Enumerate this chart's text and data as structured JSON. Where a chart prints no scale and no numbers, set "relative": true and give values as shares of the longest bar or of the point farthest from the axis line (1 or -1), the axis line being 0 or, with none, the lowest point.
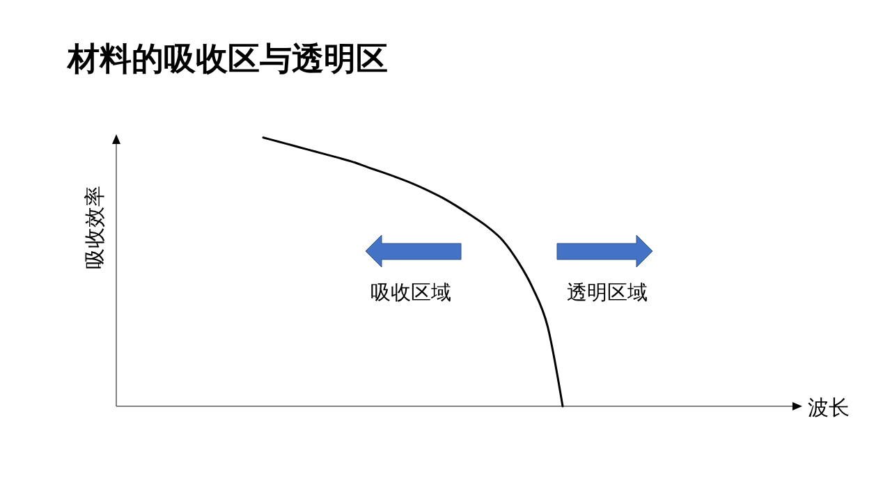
{
  "chart_data": {
    "type": "line",
    "title": "材料的吸收区与透明区",
    "xlabel": "波长",
    "ylabel": "吸收效率",
    "relative": true,
    "color": "#000000",
    "categories": [
      null,
      null,
      null,
      null,
      null,
      null,
      null,
      null,
      null,
      null,
      null,
      null,
      null,
      null,
      null,
      null,
      null,
      null,
      null,
      null,
      null,
      null,
      null,
      null,
      null,
      null,
      null,
      null,
      null,
      null,
      null,
      null,
      null,
      null,
      null,
      null,
      null,
      null,
      null,
      null,
      null,
      null,
      null,
      null,
      null
    ],
    "values": [
      null,
      null,
      null,
      null,
      null,
      null,
      null,
      null,
      null,
      1.0,
      0.985,
      0.97,
      0.955,
      0.94,
      0.925,
      0.909,
      0.889,
      0.87,
      0.85,
      0.828,
      0.803,
      0.775,
      0.742,
      0.706,
      0.667,
      0.617,
      0.54,
      0.44,
      0.296,
      0.0,
      null,
      null,
      null,
      null,
      null,
      null,
      null,
      null,
      null,
      null,
      null,
      null,
      null,
      null,
      null
    ],
    "annotations": [
      "吸收区域",
      "透明区域"
    ]
  }
}
